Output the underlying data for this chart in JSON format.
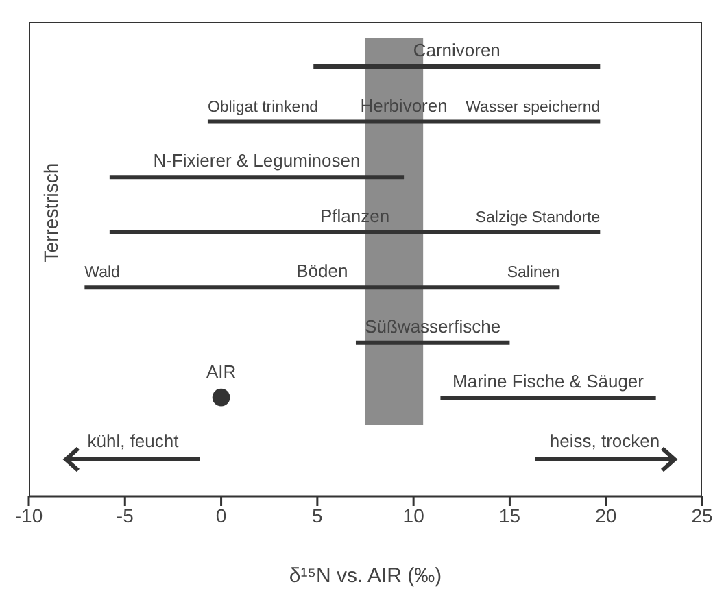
{
  "chart_data": {
    "type": "bar",
    "orientation": "horizontal",
    "xlabel": "δ¹⁵N vs. AIR (‰)",
    "ylabel": "Terrestrisch",
    "categories": [
      "Carnivoren",
      "Herbivoren",
      "N-Fixierer & Leguminosen",
      "Pflanzen",
      "Böden",
      "Süßwasserfische",
      "Marine Fische & Säuger"
    ],
    "series": [
      {
        "color": "#333333",
        "base": [
          4.8,
          -0.7,
          -5.8,
          -5.8,
          -7.1,
          7.0,
          11.4
        ],
        "values": [
          14.9,
          20.4,
          15.3,
          25.5,
          24.7,
          8.0,
          11.2
        ]
      },
      {
        "type": "scatter",
        "name": "AIR",
        "color": "#333333",
        "values": [
          null,
          null,
          null,
          null,
          null,
          null,
          0
        ]
      }
    ],
    "xlim": [
      -10,
      25
    ],
    "xticks": [
      -10,
      -5,
      0,
      5,
      10,
      15,
      20,
      25
    ],
    "tick_labels": "x",
    "bands": [
      {
        "axis": "x",
        "from": 7.5,
        "to": 10.5,
        "color": "#8c8c8c"
      }
    ],
    "annotations": [
      {
        "text": "Obligat trinkend",
        "x": -0.7,
        "y": "Herbivoren"
      },
      {
        "text": "Wasser speichernd",
        "x": 19.7,
        "y": "Herbivoren"
      },
      {
        "text": "Salzige Standorte",
        "x": 19.7,
        "y": "Pflanzen"
      },
      {
        "text": "Wald",
        "x": -7.1,
        "y": "Böden"
      },
      {
        "text": "Salinen",
        "x": 17.6,
        "y": "Böden"
      },
      "kühl, feucht",
      "heiss, trocken"
    ]
  }
}
